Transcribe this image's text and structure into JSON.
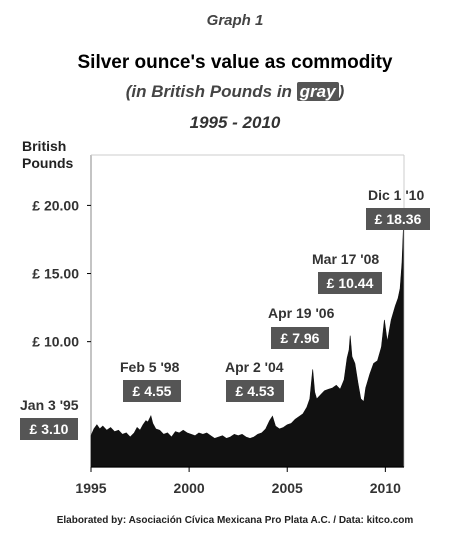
{
  "header": {
    "graph_label": "Graph 1",
    "title": "Silver ounce's value as commodity",
    "subtitle_pre": "(in British Pounds in ",
    "subtitle_gray": "gray",
    "subtitle_post": ")",
    "years": "1995 - 2010"
  },
  "footer": "Elaborated by: Asociación Cívica Mexicana Pro Plata A.C. / Data: kitco.com",
  "colors": {
    "area": "#111111",
    "label_box": "#555555",
    "axis_frame": "#888888"
  },
  "chart_data": {
    "type": "area",
    "ylabel": "British Pounds",
    "xlim": [
      1995,
      2010.95
    ],
    "ylim": [
      0.8,
      23.7
    ],
    "xticks": [
      1995,
      2000,
      2005,
      2010
    ],
    "xtick_labels": [
      "1995",
      "2000",
      "2005",
      "2010"
    ],
    "yticks": [
      10,
      15,
      20
    ],
    "ytick_labels": [
      "£ 10.00",
      "£ 15.00",
      "£ 20.00"
    ],
    "grid": false,
    "series": [
      {
        "x": [
          1995.0,
          1995.15,
          1995.3,
          1995.45,
          1995.6,
          1995.8,
          1996.0,
          1996.2,
          1996.4,
          1996.6,
          1996.8,
          1997.0,
          1997.2,
          1997.35,
          1997.5,
          1997.65,
          1997.8,
          1997.9,
          1998.05,
          1998.15,
          1998.3,
          1998.5,
          1998.7,
          1998.9,
          1999.1,
          1999.3,
          1999.5,
          1999.7,
          1999.9,
          2000.1,
          2000.3,
          2000.5,
          2000.7,
          2000.9,
          2001.1,
          2001.3,
          2001.5,
          2001.7,
          2001.9,
          2002.1,
          2002.3,
          2002.5,
          2002.7,
          2002.9,
          2003.1,
          2003.3,
          2003.5,
          2003.7,
          2003.9,
          2004.1,
          2004.25,
          2004.4,
          2004.6,
          2004.8,
          2005.0,
          2005.2,
          2005.4,
          2005.6,
          2005.8,
          2006.0,
          2006.15,
          2006.3,
          2006.4,
          2006.5,
          2006.7,
          2006.9,
          2007.1,
          2007.3,
          2007.5,
          2007.7,
          2007.9,
          2008.05,
          2008.15,
          2008.21,
          2008.3,
          2008.45,
          2008.6,
          2008.75,
          2008.9,
          2009.0,
          2009.2,
          2009.4,
          2009.6,
          2009.8,
          2009.95,
          2010.1,
          2010.3,
          2010.5,
          2010.65,
          2010.75,
          2010.85,
          2010.92
        ],
        "y": [
          3.1,
          3.6,
          3.9,
          3.6,
          3.8,
          3.5,
          3.7,
          3.4,
          3.5,
          3.2,
          3.3,
          3.0,
          3.3,
          3.7,
          3.5,
          3.9,
          4.2,
          4.1,
          4.55,
          4.0,
          3.6,
          3.5,
          3.2,
          3.3,
          3.0,
          3.4,
          3.3,
          3.5,
          3.3,
          3.2,
          3.1,
          3.3,
          3.2,
          3.3,
          3.1,
          2.9,
          3.0,
          3.1,
          2.9,
          3.0,
          3.2,
          3.1,
          3.2,
          3.0,
          2.9,
          3.0,
          3.2,
          3.3,
          3.6,
          4.2,
          4.53,
          3.8,
          3.6,
          3.7,
          3.9,
          4.0,
          4.3,
          4.5,
          4.7,
          5.2,
          5.8,
          7.96,
          6.3,
          5.8,
          6.1,
          6.4,
          6.5,
          6.6,
          6.8,
          6.5,
          7.2,
          8.8,
          9.4,
          10.44,
          8.9,
          8.4,
          7.0,
          5.8,
          5.6,
          6.6,
          7.6,
          8.4,
          8.6,
          9.6,
          11.6,
          10.0,
          11.6,
          12.6,
          13.2,
          13.9,
          15.8,
          18.36
        ]
      }
    ],
    "annotations": [
      {
        "label": "Jan 3 '95",
        "value": "£ 3.10"
      },
      {
        "label": "Feb 5 '98",
        "value": "£ 4.55"
      },
      {
        "label": "Apr 2 '04",
        "value": "£ 4.53"
      },
      {
        "label": "Apr 19 '06",
        "value": "£ 7.96"
      },
      {
        "label": "Mar 17 '08",
        "value": "£ 10.44"
      },
      {
        "label": "Dic 1 '10",
        "value": "£ 18.36"
      }
    ]
  }
}
